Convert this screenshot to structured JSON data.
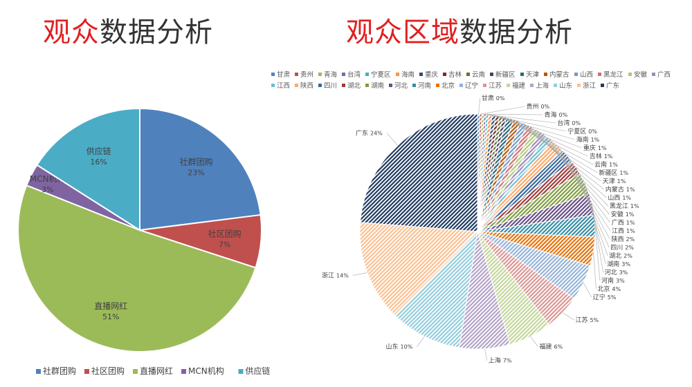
{
  "titles": {
    "left": {
      "highlight": "观众",
      "rest": "数据分析"
    },
    "right": {
      "highlight": "观众区域",
      "rest": "数据分析"
    }
  },
  "chart_data": [
    {
      "type": "pie",
      "categories": [
        "社群团购",
        "社区团购",
        "直播网红",
        "MCN机构",
        "供应链"
      ],
      "values": [
        23,
        7,
        51,
        3,
        16
      ],
      "unit": "%",
      "colors": [
        "#4f81bd",
        "#c0504d",
        "#9bbb59",
        "#8064a2",
        "#4bacc6"
      ],
      "legend": "bottom",
      "start": "top, clockwise"
    },
    {
      "type": "pie",
      "style": "hatched",
      "categories": [
        "甘肃",
        "贵州",
        "青海",
        "台湾",
        "宁夏区",
        "海南",
        "重庆",
        "吉林",
        "云南",
        "新疆区",
        "天津",
        "内蒙古",
        "山西",
        "黑龙江",
        "安徽",
        "广西",
        "江西",
        "陕西",
        "四川",
        "湖北",
        "湖南",
        "河北",
        "河南",
        "北京",
        "辽宁",
        "江苏",
        "福建",
        "上海",
        "山东",
        "浙江",
        "广东"
      ],
      "values": [
        0.3,
        0.3,
        0.3,
        0.3,
        0.3,
        0.5,
        0.5,
        0.5,
        0.5,
        0.5,
        1,
        1,
        1,
        1,
        1,
        1,
        1,
        2,
        2,
        2,
        3,
        3,
        3,
        4,
        5,
        5,
        6,
        7,
        10,
        14,
        24
      ],
      "unit": "%",
      "colors": [
        "#4f81bd",
        "#c0504d",
        "#9bbb59",
        "#8064a2",
        "#4bacc6",
        "#f79646",
        "#2c4d75",
        "#772c2a",
        "#5f7530",
        "#4d3b62",
        "#276a7c",
        "#b65708",
        "#729aca",
        "#cd7371",
        "#afc97a",
        "#9d8ab9",
        "#6fbdd2",
        "#f9ab6b",
        "#3a679c",
        "#9f3b38",
        "#7e9c40",
        "#664f83",
        "#358ea6",
        "#e6720a",
        "#95b3d7",
        "#d99694",
        "#c3d69b",
        "#b3a2c7",
        "#93cddd",
        "#fac090",
        "#1f3a5f"
      ],
      "legend": "top",
      "start": "top, clockwise"
    }
  ]
}
